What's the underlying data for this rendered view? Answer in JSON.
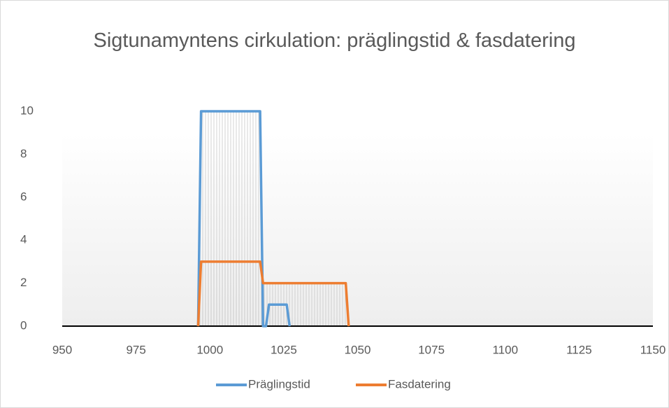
{
  "chart_data": {
    "type": "line",
    "title": "Sigtunamyntens cirkulation: präglingstid & fasdatering",
    "series": [
      {
        "name": "Präglingstid",
        "color": "#5b9bd5",
        "x": [
          996,
          997,
          1017,
          1018,
          1019,
          1020,
          1026,
          1027
        ],
        "values": [
          0,
          10,
          10,
          0,
          0,
          1,
          1,
          0
        ]
      },
      {
        "name": "Fasdatering",
        "color": "#ed7d31",
        "x": [
          996,
          997,
          1017,
          1018,
          1046,
          1047
        ],
        "values": [
          0,
          3,
          3,
          2,
          2,
          0
        ]
      }
    ],
    "xlim": [
      950,
      1150
    ],
    "xticks": [
      950,
      975,
      1000,
      1025,
      1050,
      1075,
      1100,
      1125,
      1150
    ],
    "ylim": [
      0,
      10
    ],
    "yticks": [
      0,
      2,
      4,
      6,
      8,
      10
    ],
    "legend": "bottom"
  }
}
